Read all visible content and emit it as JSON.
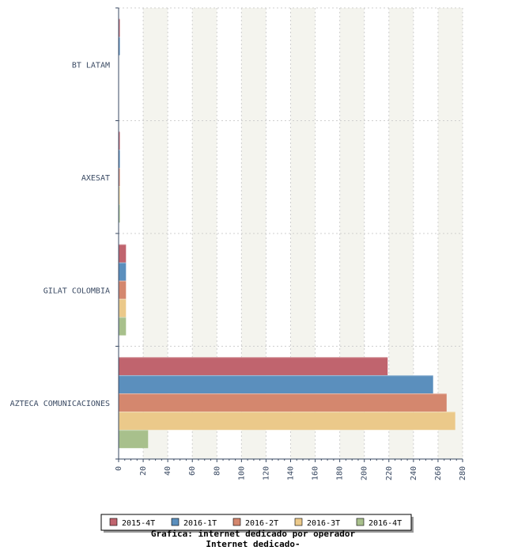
{
  "chart_data": {
    "type": "bar",
    "orientation": "horizontal",
    "categories": [
      "BT LATAM",
      "AXESAT",
      "GILAT COLOMBIA",
      "AZTECA COMUNICACIONES"
    ],
    "series": [
      {
        "name": "2015-4T",
        "color": "#c0646e",
        "values": [
          1,
          1,
          6,
          219
        ]
      },
      {
        "name": "2016-1T",
        "color": "#5b8fbd",
        "values": [
          1,
          1,
          6,
          256
        ]
      },
      {
        "name": "2016-2T",
        "color": "#d4876e",
        "values": [
          0,
          1,
          6,
          267
        ]
      },
      {
        "name": "2016-3T",
        "color": "#ebc98a",
        "values": [
          0,
          1,
          6,
          274
        ]
      },
      {
        "name": "2016-4T",
        "color": "#a8c08c",
        "values": [
          0,
          1,
          6,
          24
        ]
      }
    ],
    "xlim": [
      0,
      280
    ],
    "xticks": [
      "0",
      "20",
      "40",
      "60",
      "80",
      "100",
      "120",
      "140",
      "160",
      "180",
      "200",
      "220",
      "240",
      "260",
      "280"
    ],
    "grid": true,
    "legend_position": "bottom",
    "caption_lines": [
      "Grafica: internet dedicado por operador",
      "Internet dedicado-"
    ]
  }
}
